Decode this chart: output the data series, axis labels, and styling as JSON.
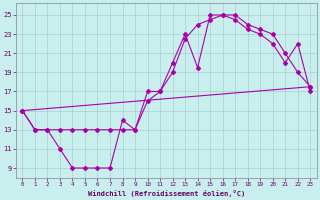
{
  "xlabel": "Windchill (Refroidissement éolien,°C)",
  "bg_color": "#c8eeee",
  "grid_color": "#b0d0d0",
  "line_color": "#aa00aa",
  "xlim": [
    -0.5,
    23.5
  ],
  "ylim": [
    8.0,
    26.2
  ],
  "xticks": [
    0,
    1,
    2,
    3,
    4,
    5,
    6,
    7,
    8,
    9,
    10,
    11,
    12,
    13,
    14,
    15,
    16,
    17,
    18,
    19,
    20,
    21,
    22,
    23
  ],
  "yticks": [
    9,
    11,
    13,
    15,
    17,
    19,
    21,
    23,
    25
  ],
  "line1_x": [
    0,
    1,
    2,
    3,
    4,
    5,
    6,
    7,
    8,
    9,
    10,
    11,
    12,
    13,
    14,
    15,
    16,
    17,
    18,
    19,
    20,
    21,
    22,
    23
  ],
  "line1_y": [
    15,
    13,
    13,
    11,
    9,
    9,
    9,
    9,
    14,
    13,
    17,
    17,
    20,
    23,
    19.5,
    25,
    25,
    25,
    24,
    23.5,
    23,
    21,
    19,
    17.5
  ],
  "line2_x": [
    0,
    1,
    2,
    3,
    4,
    5,
    6,
    7,
    8,
    9,
    10,
    11,
    12,
    13,
    14,
    15,
    16,
    17,
    18,
    19,
    20,
    21,
    22,
    23
  ],
  "line2_y": [
    15,
    13,
    13,
    13,
    13,
    13,
    13,
    13,
    13,
    13,
    16,
    17,
    19,
    22.5,
    24,
    24.5,
    25,
    24.5,
    23.5,
    23,
    22,
    20,
    22,
    17
  ],
  "line3_x": [
    0,
    23
  ],
  "line3_y": [
    15,
    17.5
  ]
}
